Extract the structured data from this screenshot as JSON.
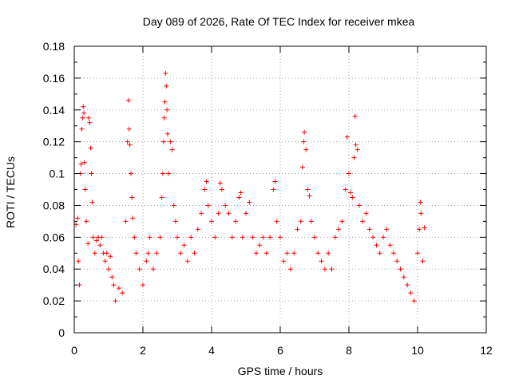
{
  "chart_data": {
    "type": "scatter",
    "title": "Day 089 of 2026, Rate Of TEC Index for receiver mkea",
    "xlabel": "GPS time / hours",
    "ylabel": "ROTI / TECUs",
    "xlim": [
      0,
      12
    ],
    "ylim": [
      0,
      0.18
    ],
    "x_ticks": [
      "0",
      "2",
      "4",
      "6",
      "8",
      "10",
      "12"
    ],
    "y_ticks": [
      "0",
      "0.02",
      "0.04",
      "0.06",
      "0.08",
      "0.1",
      "0.12",
      "0.14",
      "0.16",
      "0.18"
    ],
    "grid": true,
    "marker": "+",
    "series": [
      {
        "color": "#ff0000",
        "points": [
          [
            0.05,
            0.068
          ],
          [
            0.1,
            0.072
          ],
          [
            0.12,
            0.045
          ],
          [
            0.15,
            0.03
          ],
          [
            0.18,
            0.1
          ],
          [
            0.2,
            0.106
          ],
          [
            0.22,
            0.128
          ],
          [
            0.24,
            0.135
          ],
          [
            0.26,
            0.142
          ],
          [
            0.28,
            0.138
          ],
          [
            0.3,
            0.107
          ],
          [
            0.32,
            0.09
          ],
          [
            0.35,
            0.07
          ],
          [
            0.4,
            0.056
          ],
          [
            0.42,
            0.135
          ],
          [
            0.45,
            0.132
          ],
          [
            0.48,
            0.116
          ],
          [
            0.5,
            0.1
          ],
          [
            0.52,
            0.082
          ],
          [
            0.55,
            0.06
          ],
          [
            0.6,
            0.05
          ],
          [
            0.65,
            0.058
          ],
          [
            0.7,
            0.06
          ],
          [
            0.75,
            0.055
          ],
          [
            0.8,
            0.06
          ],
          [
            0.85,
            0.05
          ],
          [
            0.9,
            0.045
          ],
          [
            0.95,
            0.05
          ],
          [
            1.0,
            0.04
          ],
          [
            1.05,
            0.048
          ],
          [
            1.1,
            0.035
          ],
          [
            1.15,
            0.03
          ],
          [
            1.2,
            0.02
          ],
          [
            1.3,
            0.028
          ],
          [
            1.4,
            0.025
          ],
          [
            1.5,
            0.07
          ],
          [
            1.55,
            0.12
          ],
          [
            1.58,
            0.146
          ],
          [
            1.6,
            0.128
          ],
          [
            1.62,
            0.118
          ],
          [
            1.65,
            0.1
          ],
          [
            1.68,
            0.085
          ],
          [
            1.7,
            0.072
          ],
          [
            1.75,
            0.06
          ],
          [
            1.8,
            0.05
          ],
          [
            1.9,
            0.04
          ],
          [
            2.0,
            0.03
          ],
          [
            2.1,
            0.045
          ],
          [
            2.15,
            0.05
          ],
          [
            2.2,
            0.06
          ],
          [
            2.3,
            0.04
          ],
          [
            2.4,
            0.05
          ],
          [
            2.5,
            0.06
          ],
          [
            2.55,
            0.085
          ],
          [
            2.58,
            0.1
          ],
          [
            2.6,
            0.12
          ],
          [
            2.62,
            0.135
          ],
          [
            2.64,
            0.145
          ],
          [
            2.66,
            0.163
          ],
          [
            2.68,
            0.155
          ],
          [
            2.7,
            0.14
          ],
          [
            2.72,
            0.125
          ],
          [
            2.75,
            0.1
          ],
          [
            2.8,
            0.12
          ],
          [
            2.85,
            0.115
          ],
          [
            2.9,
            0.08
          ],
          [
            2.95,
            0.07
          ],
          [
            3.0,
            0.06
          ],
          [
            3.1,
            0.05
          ],
          [
            3.2,
            0.055
          ],
          [
            3.3,
            0.045
          ],
          [
            3.4,
            0.06
          ],
          [
            3.5,
            0.05
          ],
          [
            3.6,
            0.065
          ],
          [
            3.7,
            0.075
          ],
          [
            3.8,
            0.09
          ],
          [
            3.85,
            0.095
          ],
          [
            3.9,
            0.08
          ],
          [
            4.0,
            0.07
          ],
          [
            4.1,
            0.06
          ],
          [
            4.2,
            0.075
          ],
          [
            4.25,
            0.094
          ],
          [
            4.3,
            0.09
          ],
          [
            4.4,
            0.08
          ],
          [
            4.5,
            0.075
          ],
          [
            4.6,
            0.06
          ],
          [
            4.7,
            0.07
          ],
          [
            4.8,
            0.085
          ],
          [
            4.85,
            0.088
          ],
          [
            4.9,
            0.06
          ],
          [
            5.0,
            0.075
          ],
          [
            5.1,
            0.082
          ],
          [
            5.2,
            0.06
          ],
          [
            5.3,
            0.05
          ],
          [
            5.4,
            0.055
          ],
          [
            5.5,
            0.06
          ],
          [
            5.6,
            0.05
          ],
          [
            5.7,
            0.06
          ],
          [
            5.8,
            0.09
          ],
          [
            5.85,
            0.095
          ],
          [
            5.9,
            0.07
          ],
          [
            6.0,
            0.06
          ],
          [
            6.1,
            0.045
          ],
          [
            6.2,
            0.05
          ],
          [
            6.3,
            0.04
          ],
          [
            6.4,
            0.05
          ],
          [
            6.5,
            0.065
          ],
          [
            6.6,
            0.07
          ],
          [
            6.65,
            0.104
          ],
          [
            6.68,
            0.12
          ],
          [
            6.7,
            0.126
          ],
          [
            6.75,
            0.115
          ],
          [
            6.8,
            0.09
          ],
          [
            6.85,
            0.086
          ],
          [
            6.9,
            0.07
          ],
          [
            7.0,
            0.06
          ],
          [
            7.1,
            0.05
          ],
          [
            7.2,
            0.045
          ],
          [
            7.3,
            0.04
          ],
          [
            7.4,
            0.05
          ],
          [
            7.5,
            0.04
          ],
          [
            7.6,
            0.06
          ],
          [
            7.7,
            0.065
          ],
          [
            7.8,
            0.07
          ],
          [
            7.9,
            0.09
          ],
          [
            7.95,
            0.123
          ],
          [
            8.0,
            0.1
          ],
          [
            8.05,
            0.088
          ],
          [
            8.1,
            0.085
          ],
          [
            8.15,
            0.11
          ],
          [
            8.18,
            0.136
          ],
          [
            8.2,
            0.118
          ],
          [
            8.25,
            0.115
          ],
          [
            8.3,
            0.08
          ],
          [
            8.4,
            0.07
          ],
          [
            8.5,
            0.075
          ],
          [
            8.6,
            0.065
          ],
          [
            8.7,
            0.06
          ],
          [
            8.8,
            0.055
          ],
          [
            8.9,
            0.05
          ],
          [
            9.0,
            0.06
          ],
          [
            9.1,
            0.065
          ],
          [
            9.2,
            0.055
          ],
          [
            9.3,
            0.05
          ],
          [
            9.4,
            0.045
          ],
          [
            9.5,
            0.04
          ],
          [
            9.6,
            0.035
          ],
          [
            9.7,
            0.03
          ],
          [
            9.8,
            0.025
          ],
          [
            9.9,
            0.02
          ],
          [
            10.0,
            0.05
          ],
          [
            10.05,
            0.065
          ],
          [
            10.08,
            0.082
          ],
          [
            10.1,
            0.075
          ],
          [
            10.15,
            0.045
          ],
          [
            10.2,
            0.066
          ]
        ]
      }
    ]
  }
}
